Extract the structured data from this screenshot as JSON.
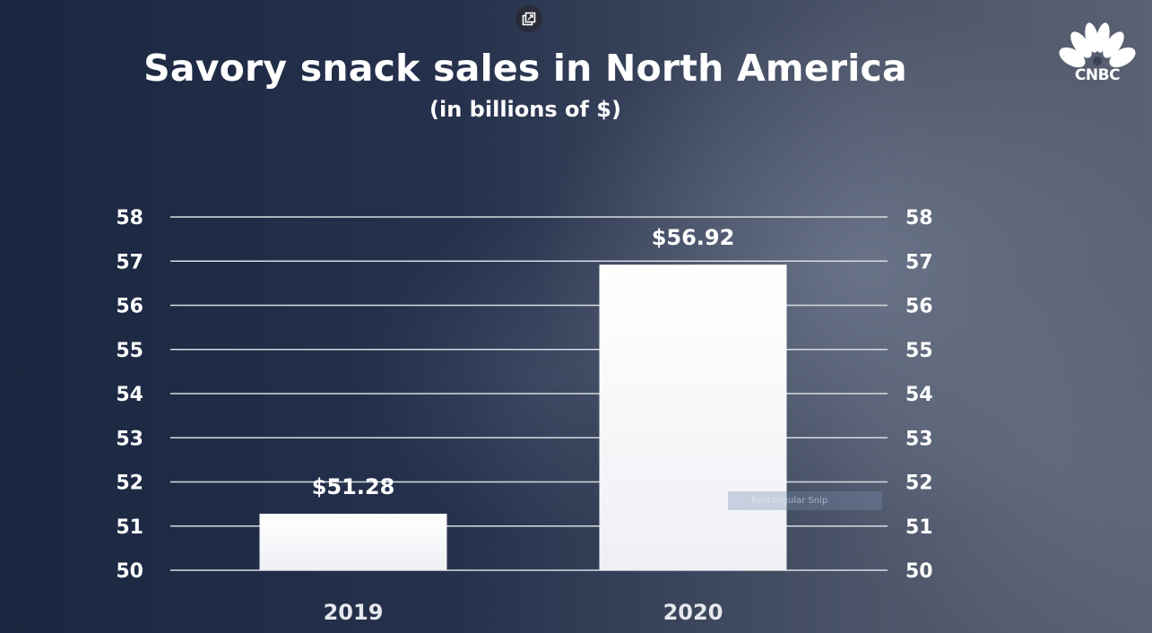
{
  "header": {
    "title": "Savory snack sales in North America",
    "subtitle": "(in billions of $)"
  },
  "logo": {
    "text": "CNBC",
    "icon": "peacock-icon"
  },
  "controls": {
    "popout_icon": "popout-icon"
  },
  "overlay": {
    "snip_label": "Rectangular Snip"
  },
  "colors": {
    "bar": "#ffffff",
    "gridline": "#d8dbe2",
    "text": "#ffffff"
  },
  "chart_data": {
    "type": "bar",
    "title": "Savory snack sales in North America",
    "subtitle": "(in billions of $)",
    "categories": [
      "2019",
      "2020"
    ],
    "values": [
      51.28,
      56.92
    ],
    "data_labels": [
      "$51.28",
      "$56.92"
    ],
    "xlabel": "",
    "ylabel": "",
    "ylim": [
      50,
      58
    ],
    "yticks": [
      50,
      51,
      52,
      53,
      54,
      55,
      56,
      57,
      58
    ],
    "grid": true,
    "secondary_y_axis": true,
    "legend": "none"
  }
}
